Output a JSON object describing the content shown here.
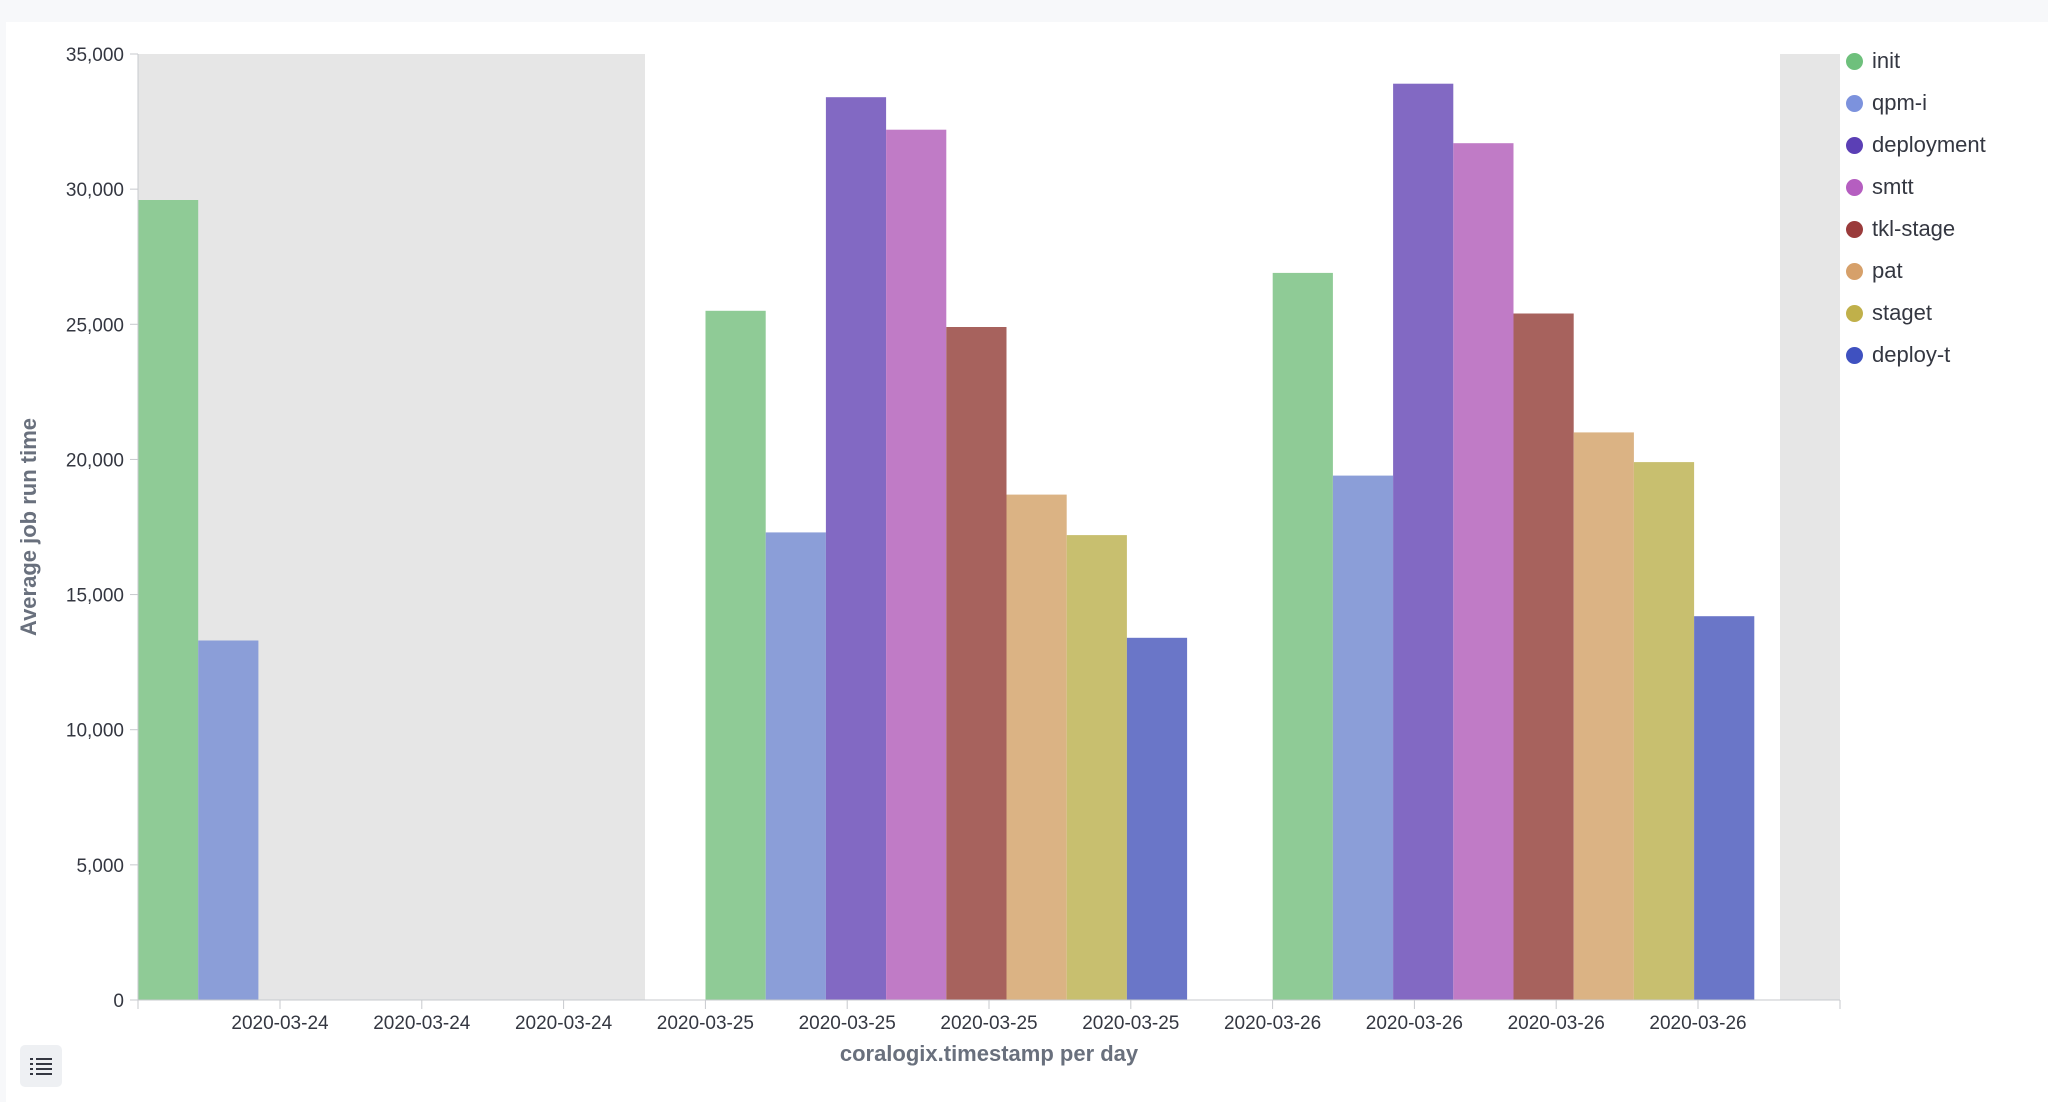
{
  "chart_data": {
    "type": "bar",
    "xlabel": "coralogix.timestamp per day",
    "ylabel": "Average job run time",
    "ylim": [
      0,
      35000
    ],
    "yticks": [
      0,
      5000,
      10000,
      15000,
      20000,
      25000,
      30000,
      35000
    ],
    "ytick_labels": [
      "0",
      "5,000",
      "10,000",
      "15,000",
      "20,000",
      "25,000",
      "30,000",
      "35,000"
    ],
    "xtick_labels": [
      "2020-03-24",
      "2020-03-24",
      "2020-03-24",
      "2020-03-25",
      "2020-03-25",
      "2020-03-25",
      "2020-03-25",
      "2020-03-26",
      "2020-03-26",
      "2020-03-26",
      "2020-03-26"
    ],
    "categories": [
      "2020-03-24",
      "2020-03-25",
      "2020-03-26"
    ],
    "legend_position": "right",
    "grid": false,
    "series": [
      {
        "name": "init",
        "color": "#8fcb96",
        "values": [
          29600,
          25500,
          26900
        ]
      },
      {
        "name": "qpm-i",
        "color": "#8b9ed8",
        "values": [
          13300,
          17300,
          19400
        ]
      },
      {
        "name": "deployment",
        "color": "#8269c3",
        "values": [
          null,
          33400,
          33900
        ]
      },
      {
        "name": "smtt",
        "color": "#c07bc6",
        "values": [
          null,
          32200,
          31700
        ]
      },
      {
        "name": "tkl-stage",
        "color": "#a7625d",
        "values": [
          null,
          24900,
          25400
        ]
      },
      {
        "name": "pat",
        "color": "#dbb384",
        "values": [
          null,
          18700,
          21000
        ]
      },
      {
        "name": "staget",
        "color": "#c8bf6f",
        "values": [
          null,
          17200,
          19900
        ]
      },
      {
        "name": "deploy-t",
        "color": "#6a76c8",
        "values": [
          null,
          13400,
          14200
        ]
      }
    ],
    "legend_dot_colors": [
      "#6ec07c",
      "#7c92dd",
      "#5b3fb5",
      "#b55ec0",
      "#9a3b3b",
      "#d6a06a",
      "#c0b04a",
      "#3f51c0"
    ]
  },
  "legend_toggle": {
    "icon": "list-icon"
  }
}
